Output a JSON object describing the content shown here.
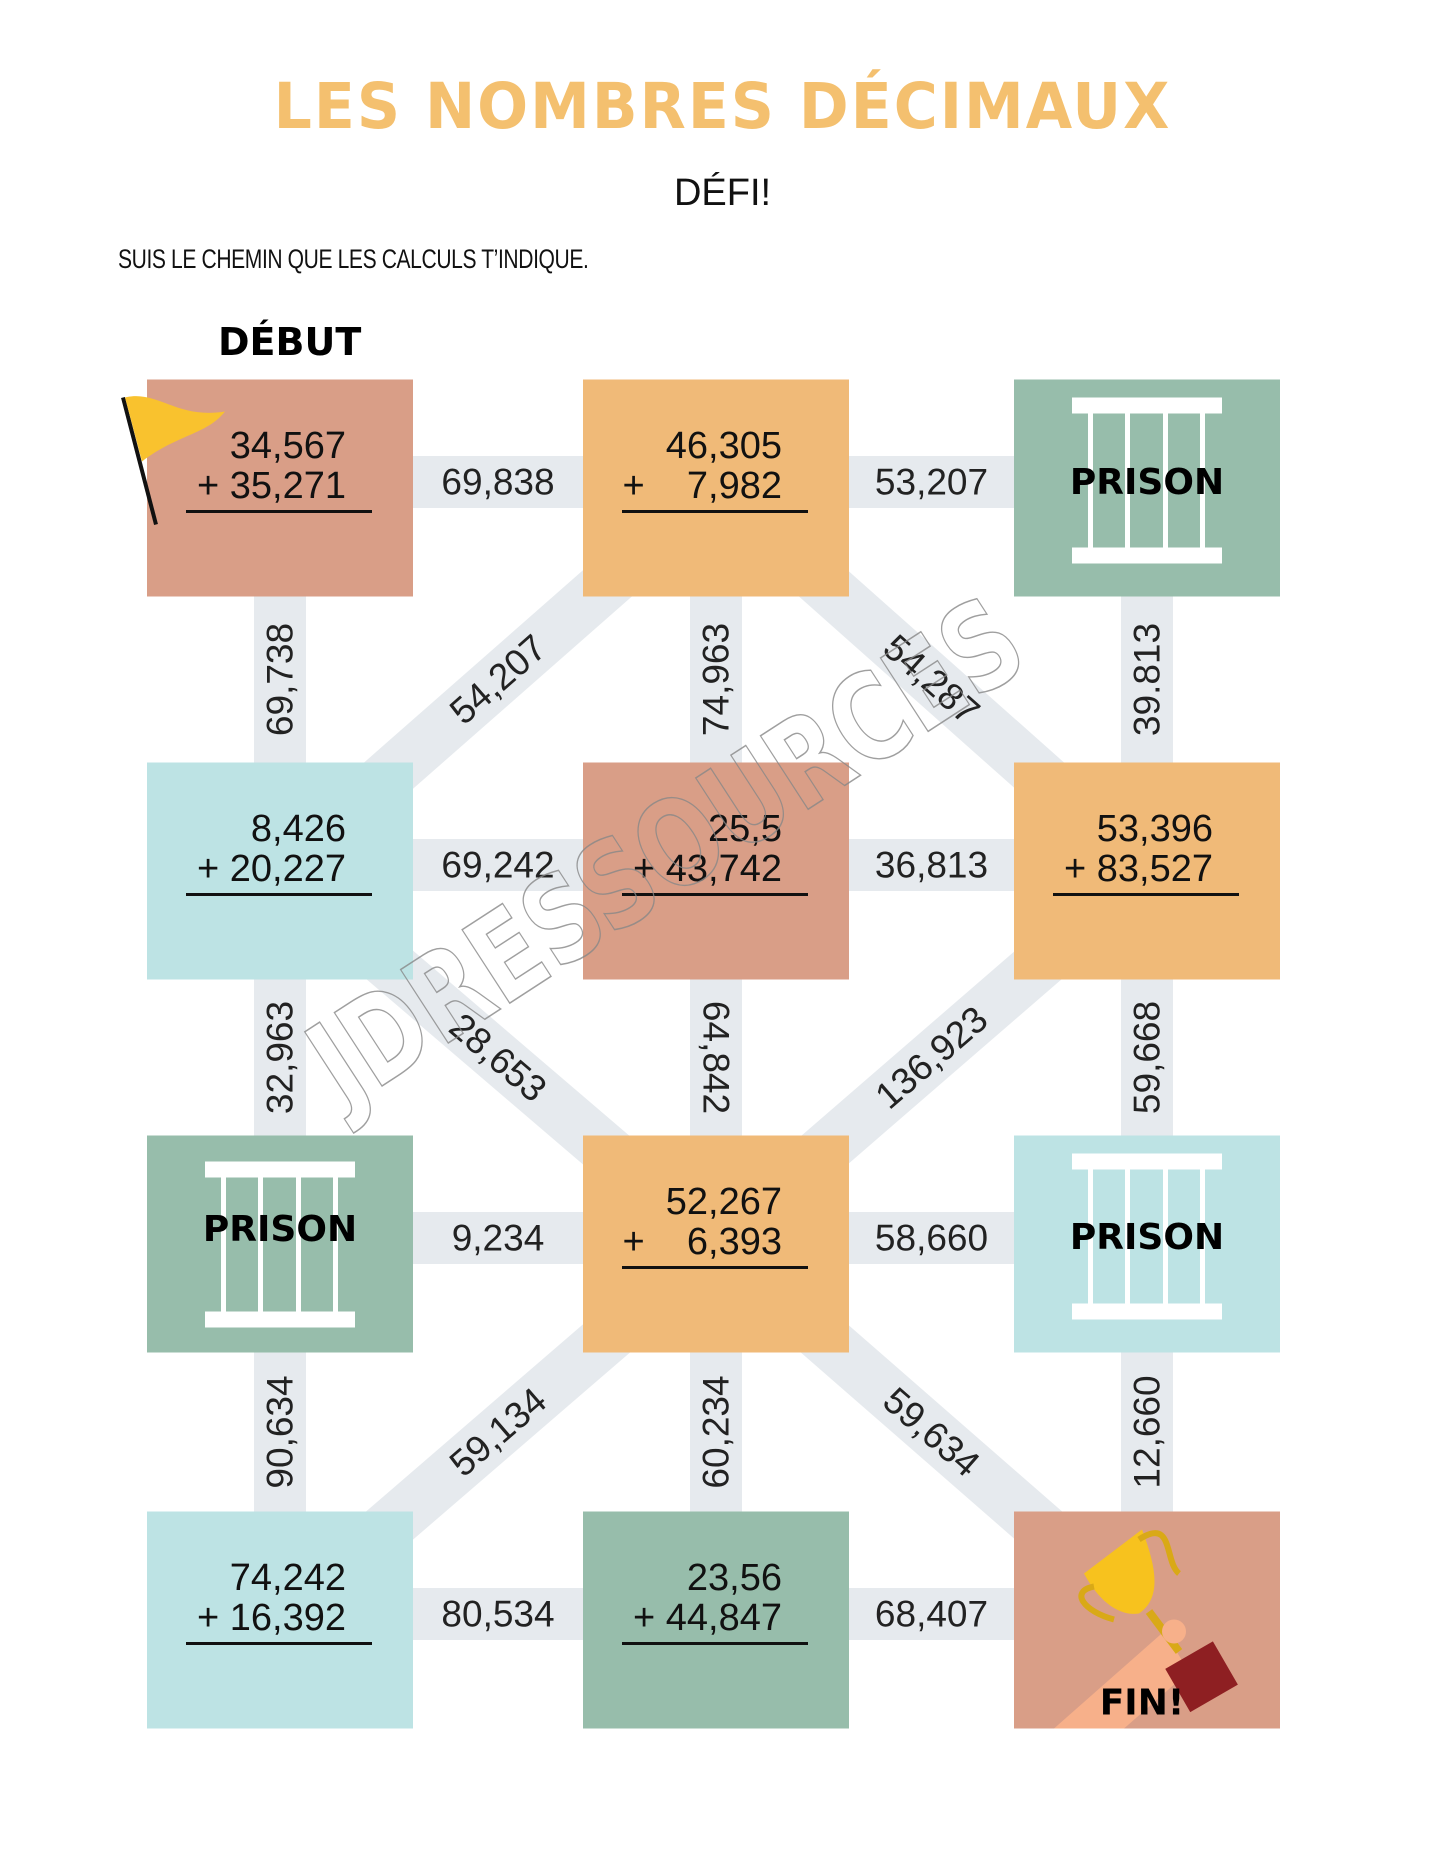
{
  "header": {
    "title": "LES NOMBRES DÉCIMAUX",
    "subtitle": "DÉFI!",
    "instruction": "SUIS LE CHEMIN QUE LES CALCULS T’INDIQUE.",
    "start_label": "DÉBUT"
  },
  "colors": {
    "title": "#f4c06f",
    "salmon": "#d99e87",
    "orange": "#f0ba78",
    "green": "#97bdab",
    "lightblue": "#bde3e4",
    "path": "#e6eaee"
  },
  "watermark": "JDRESSOURCES",
  "cells": [
    {
      "row": 0,
      "col": 0,
      "color": "salmon",
      "type": "calc",
      "a": "34,567",
      "b": "+ 35,271",
      "icon": "flag-icon"
    },
    {
      "row": 0,
      "col": 1,
      "color": "orange",
      "type": "calc",
      "a": "46,305",
      "b": "+    7,982"
    },
    {
      "row": 0,
      "col": 2,
      "color": "green",
      "type": "prison",
      "label": "PRISON",
      "icon": "prison-bars-icon"
    },
    {
      "row": 1,
      "col": 0,
      "color": "lightblue",
      "type": "calc",
      "a": "8,426",
      "b": "+ 20,227"
    },
    {
      "row": 1,
      "col": 1,
      "color": "salmon",
      "type": "calc",
      "a": "25,5",
      "b": "+ 43,742"
    },
    {
      "row": 1,
      "col": 2,
      "color": "orange",
      "type": "calc",
      "a": "53,396",
      "b": "+ 83,527"
    },
    {
      "row": 2,
      "col": 0,
      "color": "green",
      "type": "prison",
      "label": "PRISON",
      "icon": "prison-bars-icon"
    },
    {
      "row": 2,
      "col": 1,
      "color": "orange",
      "type": "calc",
      "a": "52,267",
      "b": "+    6,393"
    },
    {
      "row": 2,
      "col": 2,
      "color": "lightblue",
      "type": "prison",
      "label": "PRISON",
      "icon": "prison-bars-icon"
    },
    {
      "row": 3,
      "col": 0,
      "color": "lightblue",
      "type": "calc",
      "a": "74,242",
      "b": "+ 16,392"
    },
    {
      "row": 3,
      "col": 1,
      "color": "green",
      "type": "calc",
      "a": "23,56",
      "b": "+ 44,847"
    },
    {
      "row": 3,
      "col": 2,
      "color": "salmon",
      "type": "finish",
      "label": "FIN!",
      "icon": "trophy-icon"
    }
  ],
  "edges": [
    {
      "from": [
        0,
        0
      ],
      "to": [
        0,
        1
      ],
      "value": "69,838"
    },
    {
      "from": [
        0,
        1
      ],
      "to": [
        0,
        2
      ],
      "value": "53,207"
    },
    {
      "from": [
        1,
        0
      ],
      "to": [
        1,
        1
      ],
      "value": "69,242"
    },
    {
      "from": [
        1,
        1
      ],
      "to": [
        1,
        2
      ],
      "value": "36,813"
    },
    {
      "from": [
        2,
        0
      ],
      "to": [
        2,
        1
      ],
      "value": "9,234"
    },
    {
      "from": [
        2,
        1
      ],
      "to": [
        2,
        2
      ],
      "value": "58,660"
    },
    {
      "from": [
        3,
        0
      ],
      "to": [
        3,
        1
      ],
      "value": "80,534"
    },
    {
      "from": [
        3,
        1
      ],
      "to": [
        3,
        2
      ],
      "value": "68,407"
    },
    {
      "from": [
        0,
        0
      ],
      "to": [
        1,
        0
      ],
      "value": "69,738"
    },
    {
      "from": [
        1,
        0
      ],
      "to": [
        2,
        0
      ],
      "value": "32,963"
    },
    {
      "from": [
        2,
        0
      ],
      "to": [
        3,
        0
      ],
      "value": "90,634"
    },
    {
      "from": [
        0,
        1
      ],
      "to": [
        1,
        1
      ],
      "value": "74,963"
    },
    {
      "from": [
        1,
        1
      ],
      "to": [
        2,
        1
      ],
      "value": "64,842",
      "flip": true
    },
    {
      "from": [
        2,
        1
      ],
      "to": [
        3,
        1
      ],
      "value": "60,234"
    },
    {
      "from": [
        0,
        2
      ],
      "to": [
        1,
        2
      ],
      "value": "39.813"
    },
    {
      "from": [
        1,
        2
      ],
      "to": [
        2,
        2
      ],
      "value": "59,668"
    },
    {
      "from": [
        2,
        2
      ],
      "to": [
        3,
        2
      ],
      "value": "12,660"
    },
    {
      "from": [
        0,
        1
      ],
      "to": [
        1,
        0
      ],
      "value": "54,207"
    },
    {
      "from": [
        0,
        1
      ],
      "to": [
        1,
        2
      ],
      "value": "54,287"
    },
    {
      "from": [
        1,
        0
      ],
      "to": [
        2,
        1
      ],
      "value": "28,653"
    },
    {
      "from": [
        1,
        2
      ],
      "to": [
        2,
        1
      ],
      "value": "136,923"
    },
    {
      "from": [
        2,
        1
      ],
      "to": [
        3,
        0
      ],
      "value": "59,134"
    },
    {
      "from": [
        2,
        1
      ],
      "to": [
        3,
        2
      ],
      "value": "59,634"
    }
  ]
}
